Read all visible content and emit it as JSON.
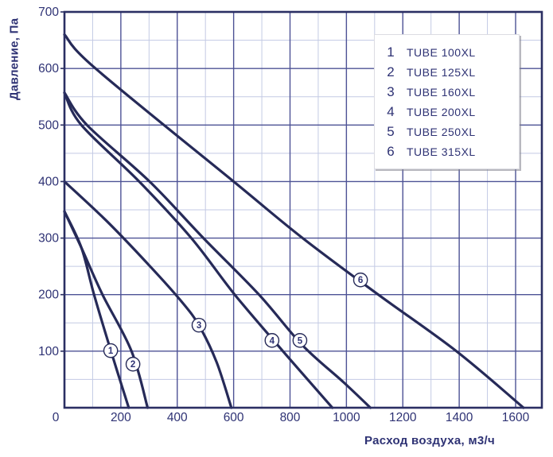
{
  "colors": {
    "curve": "#262a58",
    "grid_major": "#4d5295",
    "grid_minor": "#c3cae4",
    "border": "#2b2f63",
    "text": "#2e3274",
    "marker_fill": "#ffffff"
  },
  "chart_data": {
    "type": "line",
    "title": "",
    "xlabel": "Расход воздуха, м3/ч",
    "ylabel": "Давление, Па",
    "xlim": [
      0,
      1700
    ],
    "ylim": [
      0,
      700
    ],
    "x_ticks": [
      0,
      200,
      400,
      600,
      800,
      1000,
      1200,
      1400,
      1600
    ],
    "y_ticks": [
      700,
      600,
      500,
      400,
      300,
      200,
      100
    ],
    "x_minor_step": 100,
    "x_major_step": 200,
    "y_minor_step": 50,
    "y_major_step": 100,
    "grid": "major+minor",
    "legend_position": "top-right",
    "series": [
      {
        "id": "1",
        "name": "TUBE 100XL",
        "points": [
          [
            0,
            347
          ],
          [
            60,
            283
          ],
          [
            105,
            200
          ],
          [
            165,
            100
          ],
          [
            228,
            0
          ]
        ],
        "label_at": [
          164,
          101
        ]
      },
      {
        "id": "2",
        "name": "TUBE 125XL",
        "points": [
          [
            0,
            347
          ],
          [
            60,
            283
          ],
          [
            135,
            200
          ],
          [
            238,
            100
          ],
          [
            295,
            0
          ]
        ],
        "label_at": [
          243,
          77
        ]
      },
      {
        "id": "3",
        "name": "TUBE 160XL",
        "points": [
          [
            0,
            400
          ],
          [
            150,
            330
          ],
          [
            300,
            252
          ],
          [
            420,
            185
          ],
          [
            480,
            143
          ],
          [
            540,
            80
          ],
          [
            592,
            0
          ]
        ],
        "label_at": [
          477,
          146
        ]
      },
      {
        "id": "4",
        "name": "TUBE 200XL",
        "points": [
          [
            0,
            557
          ],
          [
            60,
            500
          ],
          [
            265,
            400
          ],
          [
            450,
            300
          ],
          [
            604,
            200
          ],
          [
            775,
            100
          ],
          [
            950,
            0
          ]
        ],
        "label_at": [
          736,
          119
        ]
      },
      {
        "id": "5",
        "name": "TUBE 250XL",
        "points": [
          [
            0,
            557
          ],
          [
            80,
            500
          ],
          [
            302,
            400
          ],
          [
            493,
            300
          ],
          [
            690,
            200
          ],
          [
            845,
            110
          ],
          [
            990,
            45
          ],
          [
            1085,
            0
          ]
        ],
        "label_at": [
          835,
          119
        ]
      },
      {
        "id": "6",
        "name": "TUBE 315XL",
        "points": [
          [
            0,
            660
          ],
          [
            110,
            600
          ],
          [
            600,
            400
          ],
          [
            845,
            300
          ],
          [
            1113,
            200
          ],
          [
            1390,
            100
          ],
          [
            1628,
            0
          ]
        ],
        "label_at": [
          1050,
          226
        ]
      }
    ]
  }
}
